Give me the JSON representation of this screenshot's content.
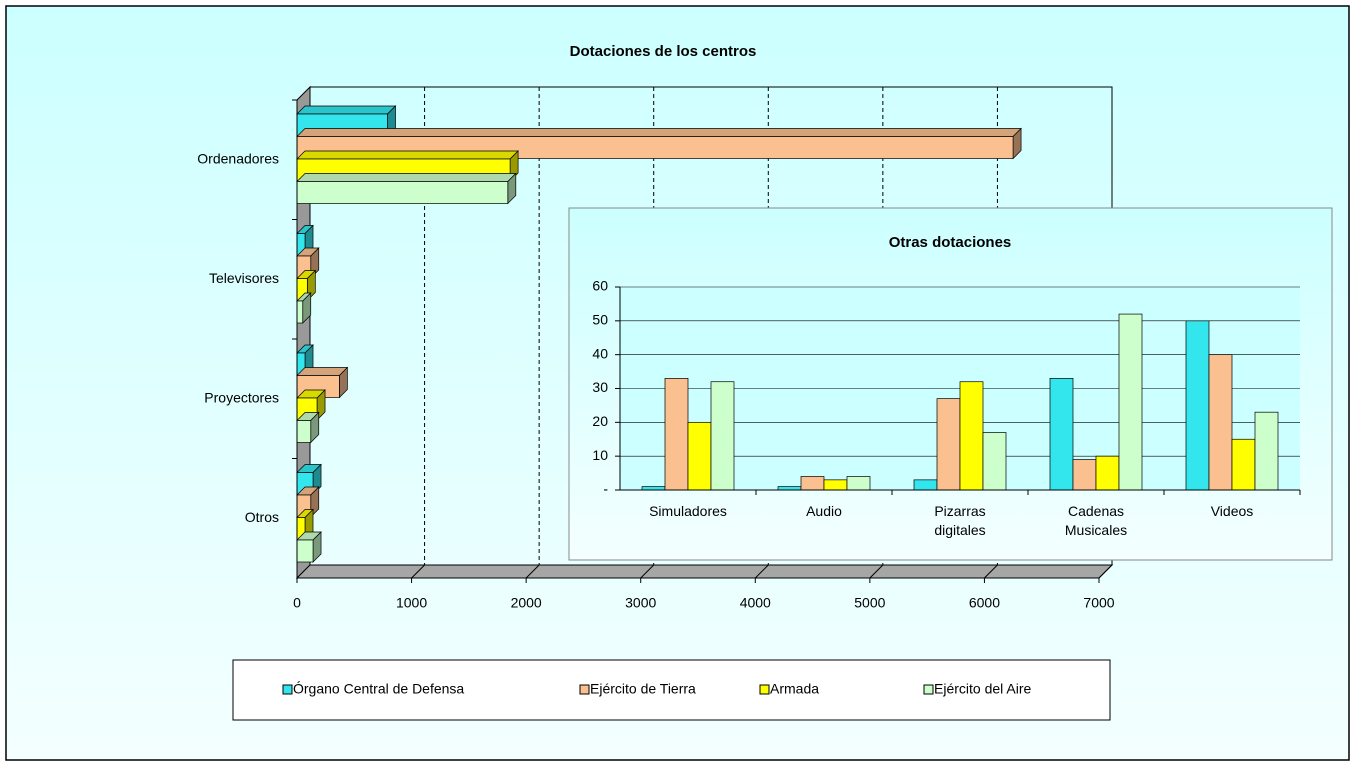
{
  "chart_data": [
    {
      "type": "hbar",
      "title": "Dotaciones de los centros",
      "categories": [
        "Ordenadores",
        "Televisores",
        "Proyectores",
        "Otros"
      ],
      "series": [
        {
          "name": "Órgano Central de Defensa",
          "color": "#33e6ee",
          "values": [
            790,
            70,
            70,
            140
          ]
        },
        {
          "name": "Ejército de Tierra",
          "color": "#fac090",
          "values": [
            6250,
            120,
            370,
            120
          ]
        },
        {
          "name": "Armada",
          "color": "#ffff00",
          "values": [
            1860,
            90,
            175,
            70
          ]
        },
        {
          "name": "Ejército del Aire",
          "color": "#ccffcc",
          "values": [
            1840,
            50,
            120,
            140
          ]
        }
      ],
      "xlim": [
        0,
        7000
      ],
      "xticks": [
        0,
        1000,
        2000,
        3000,
        4000,
        5000,
        6000,
        7000
      ],
      "grid": true,
      "legend": "bottom"
    },
    {
      "type": "bar",
      "title": "Otras dotaciones",
      "categories": [
        "Simuladores",
        "Audio",
        "Pizarras digitales",
        "Cadenas Musicales",
        "Videos"
      ],
      "series": [
        {
          "color": "#33e6ee",
          "values": [
            1,
            1,
            3,
            33,
            50
          ]
        },
        {
          "color": "#fac090",
          "values": [
            33,
            4,
            27,
            9,
            40
          ]
        },
        {
          "color": "#ffff00",
          "values": [
            20,
            3,
            32,
            10,
            15
          ]
        },
        {
          "color": "#ccffcc",
          "values": [
            32,
            4,
            17,
            52,
            23
          ]
        }
      ],
      "ylim": [
        0,
        60
      ],
      "yticks": [
        {
          "value": 0,
          "label": "-"
        },
        10,
        20,
        30,
        40,
        50,
        60
      ],
      "grid": true
    }
  ]
}
